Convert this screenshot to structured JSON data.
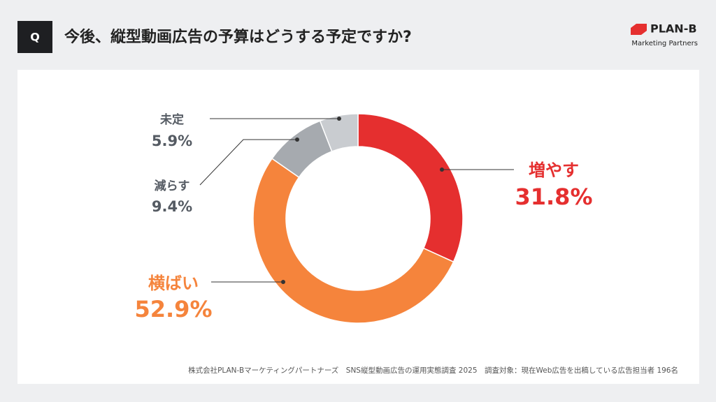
{
  "header": {
    "q_label": "Q",
    "title": "今後、縦型動画広告の予算はどうする予定ですか?",
    "logo": "PLAN-B",
    "logo_sub": "Marketing Partners"
  },
  "chart_data": {
    "type": "pie",
    "donut": true,
    "categories": [
      "増やす",
      "横ばい",
      "減らす",
      "未定"
    ],
    "values": [
      31.8,
      52.9,
      9.4,
      5.9
    ],
    "value_labels": [
      "31.8%",
      "52.9%",
      "9.4%",
      "5.9%"
    ],
    "colors": [
      "#e52f2f",
      "#f5843c",
      "#a6aaaf",
      "#c9ccd0"
    ],
    "label_colors": [
      "#e52f2f",
      "#f5843c",
      "#555b63",
      "#555b63"
    ]
  },
  "footnote": "株式会社PLAN-Bマーケティングパートナーズ　SNS縦型動画広告の運用実態調査 2025　調査対象：現在Web広告を出稿している広告担当者 196名"
}
